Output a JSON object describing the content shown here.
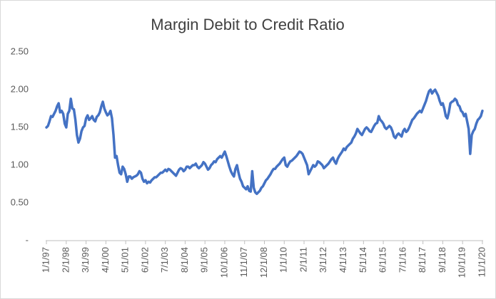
{
  "chart_data": {
    "type": "line",
    "title": "Margin Debit to Credit Ratio",
    "categories": [
      "1/1/97",
      null,
      null,
      null,
      null,
      null,
      null,
      null,
      null,
      null,
      null,
      null,
      null,
      "2/1/98",
      null,
      null,
      null,
      null,
      null,
      null,
      null,
      null,
      null,
      null,
      null,
      null,
      "3/1/99",
      null,
      null,
      null,
      null,
      null,
      null,
      null,
      null,
      null,
      null,
      null,
      null,
      "4/1/00",
      null,
      null,
      null,
      null,
      null,
      null,
      null,
      null,
      null,
      null,
      null,
      null,
      "5/1/01",
      null,
      null,
      null,
      null,
      null,
      null,
      null,
      null,
      null,
      null,
      null,
      null,
      "6/1/02",
      null,
      null,
      null,
      null,
      null,
      null,
      null,
      null,
      null,
      null,
      null,
      null,
      "7/1/03",
      null,
      null,
      null,
      null,
      null,
      null,
      null,
      null,
      null,
      null,
      null,
      null,
      "8/1/04",
      null,
      null,
      null,
      null,
      null,
      null,
      null,
      null,
      null,
      null,
      null,
      null,
      "9/1/05",
      null,
      null,
      null,
      null,
      null,
      null,
      null,
      null,
      null,
      null,
      null,
      null,
      "10/1/06",
      null,
      null,
      null,
      null,
      null,
      null,
      null,
      null,
      null,
      null,
      null,
      null,
      "11/1/07",
      null,
      null,
      null,
      null,
      null,
      null,
      null,
      null,
      null,
      null,
      null,
      null,
      "12/1/08",
      null,
      null,
      null,
      null,
      null,
      null,
      null,
      null,
      null,
      null,
      null,
      null,
      "1/1/10",
      null,
      null,
      null,
      null,
      null,
      null,
      null,
      null,
      null,
      null,
      null,
      null,
      "2/1/11",
      null,
      null,
      null,
      null,
      null,
      null,
      null,
      null,
      null,
      null,
      null,
      null,
      "3/1/12",
      null,
      null,
      null,
      null,
      null,
      null,
      null,
      null,
      null,
      null,
      null,
      null,
      "4/1/13",
      null,
      null,
      null,
      null,
      null,
      null,
      null,
      null,
      null,
      null,
      null,
      null,
      "5/1/14",
      null,
      null,
      null,
      null,
      null,
      null,
      null,
      null,
      null,
      null,
      null,
      null,
      "6/1/15",
      null,
      null,
      null,
      null,
      null,
      null,
      null,
      null,
      null,
      null,
      null,
      null,
      "7/1/16",
      null,
      null,
      null,
      null,
      null,
      null,
      null,
      null,
      null,
      null,
      null,
      null,
      "8/1/17",
      null,
      null,
      null,
      null,
      null,
      null,
      null,
      null,
      null,
      null,
      null,
      null,
      "9/1/18",
      null,
      null,
      null,
      null,
      null,
      null,
      null,
      null,
      null,
      null,
      null,
      null,
      "10/1/19",
      null,
      null,
      null,
      null,
      null,
      null,
      null,
      null,
      null,
      null,
      null,
      null,
      "11/1/20"
    ],
    "values": [
      1.5,
      1.52,
      1.58,
      1.65,
      1.64,
      1.68,
      1.72,
      1.78,
      1.82,
      1.7,
      1.72,
      1.68,
      1.55,
      1.5,
      1.68,
      1.72,
      1.88,
      1.75,
      1.74,
      1.6,
      1.4,
      1.3,
      1.35,
      1.45,
      1.5,
      1.52,
      1.62,
      1.66,
      1.6,
      1.62,
      1.65,
      1.6,
      1.58,
      1.64,
      1.66,
      1.7,
      1.78,
      1.84,
      1.75,
      1.7,
      1.66,
      1.68,
      1.72,
      1.62,
      1.4,
      1.1,
      1.12,
      1.0,
      0.9,
      0.88,
      0.98,
      0.95,
      0.88,
      0.78,
      0.85,
      0.85,
      0.82,
      0.84,
      0.85,
      0.86,
      0.88,
      0.92,
      0.9,
      0.82,
      0.78,
      0.8,
      0.76,
      0.78,
      0.77,
      0.8,
      0.82,
      0.84,
      0.84,
      0.86,
      0.88,
      0.9,
      0.9,
      0.92,
      0.94,
      0.92,
      0.95,
      0.94,
      0.92,
      0.9,
      0.88,
      0.86,
      0.9,
      0.94,
      0.96,
      0.95,
      0.92,
      0.94,
      0.98,
      0.98,
      0.96,
      0.98,
      1.0,
      1.0,
      1.02,
      0.98,
      0.96,
      0.98,
      1.0,
      1.04,
      1.02,
      0.98,
      0.94,
      0.96,
      1.0,
      1.02,
      1.05,
      1.04,
      1.08,
      1.1,
      1.12,
      1.1,
      1.14,
      1.18,
      1.12,
      1.05,
      0.98,
      0.92,
      0.88,
      0.85,
      0.95,
      1.0,
      0.9,
      0.82,
      0.78,
      0.72,
      0.7,
      0.68,
      0.72,
      0.66,
      0.65,
      0.92,
      0.7,
      0.64,
      0.62,
      0.64,
      0.66,
      0.7,
      0.72,
      0.76,
      0.8,
      0.82,
      0.85,
      0.88,
      0.92,
      0.95,
      0.95,
      0.98,
      1.0,
      1.02,
      1.05,
      1.08,
      1.1,
      1.0,
      0.98,
      1.02,
      1.05,
      1.06,
      1.08,
      1.1,
      1.12,
      1.15,
      1.18,
      1.17,
      1.15,
      1.1,
      1.05,
      1.0,
      0.88,
      0.92,
      0.96,
      1.0,
      0.98,
      1.0,
      1.05,
      1.04,
      1.02,
      1.0,
      0.96,
      0.98,
      1.0,
      1.02,
      1.05,
      1.08,
      1.1,
      1.05,
      1.02,
      1.08,
      1.12,
      1.15,
      1.18,
      1.22,
      1.2,
      1.24,
      1.26,
      1.28,
      1.3,
      1.35,
      1.38,
      1.42,
      1.48,
      1.45,
      1.42,
      1.4,
      1.44,
      1.48,
      1.5,
      1.48,
      1.45,
      1.44,
      1.48,
      1.52,
      1.55,
      1.56,
      1.65,
      1.6,
      1.58,
      1.55,
      1.5,
      1.48,
      1.5,
      1.52,
      1.5,
      1.45,
      1.38,
      1.36,
      1.4,
      1.42,
      1.4,
      1.38,
      1.45,
      1.48,
      1.44,
      1.46,
      1.5,
      1.55,
      1.6,
      1.62,
      1.65,
      1.68,
      1.7,
      1.72,
      1.7,
      1.75,
      1.8,
      1.85,
      1.92,
      1.98,
      2.0,
      1.95,
      1.98,
      2.0,
      1.96,
      1.92,
      1.85,
      1.8,
      1.82,
      1.75,
      1.65,
      1.62,
      1.7,
      1.82,
      1.84,
      1.85,
      1.88,
      1.86,
      1.8,
      1.78,
      1.72,
      1.7,
      1.65,
      1.68,
      1.58,
      1.48,
      1.15,
      1.4,
      1.45,
      1.48,
      1.55,
      1.6,
      1.62,
      1.65,
      1.72
    ],
    "color": "#4472c4",
    "ylim": [
      0,
      2.5
    ],
    "yticks": [
      {
        "value": 0,
        "label": "-"
      },
      {
        "value": 0.5,
        "label": "0.50"
      },
      {
        "value": 1,
        "label": "1.00"
      },
      {
        "value": 1.5,
        "label": "1.50"
      },
      {
        "value": 2,
        "label": "2.00"
      },
      {
        "value": 2.5,
        "label": "2.50"
      }
    ],
    "grid": false
  }
}
